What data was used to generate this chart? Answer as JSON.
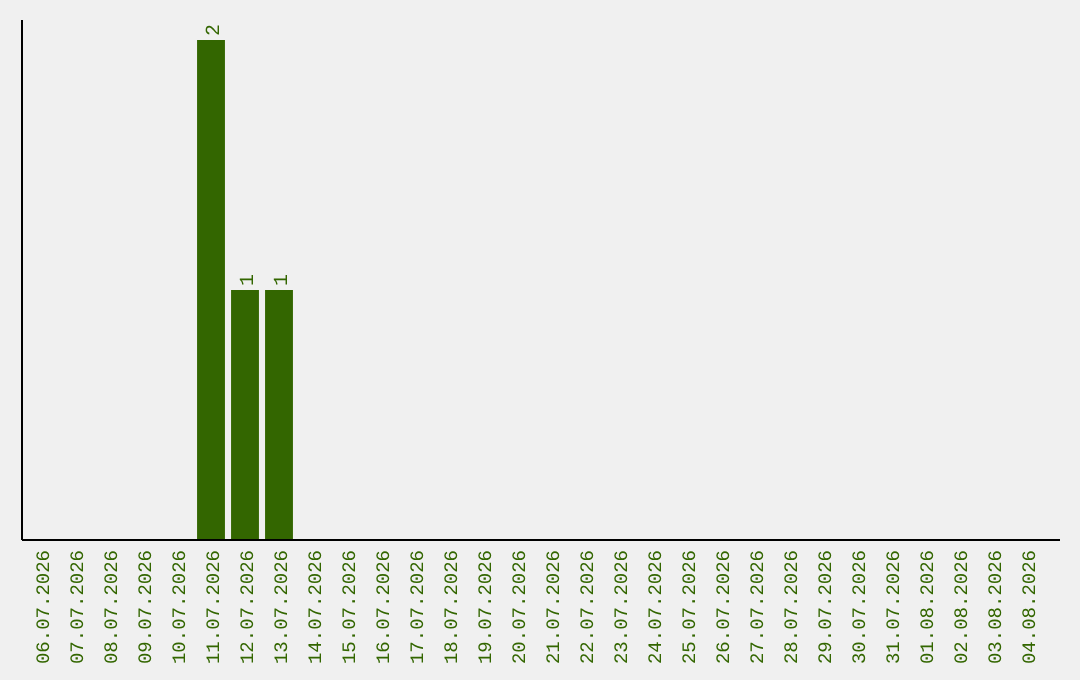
{
  "chart_data": {
    "type": "bar",
    "categories": [
      "06.07.2026",
      "07.07.2026",
      "08.07.2026",
      "09.07.2026",
      "10.07.2026",
      "11.07.2026",
      "12.07.2026",
      "13.07.2026",
      "14.07.2026",
      "15.07.2026",
      "16.07.2026",
      "17.07.2026",
      "18.07.2026",
      "19.07.2026",
      "20.07.2026",
      "21.07.2026",
      "22.07.2026",
      "23.07.2026",
      "24.07.2026",
      "25.07.2026",
      "26.07.2026",
      "27.07.2026",
      "28.07.2026",
      "29.07.2026",
      "30.07.2026",
      "31.07.2026",
      "01.08.2026",
      "02.08.2026",
      "03.08.2026",
      "04.08.2026"
    ],
    "values": [
      0,
      0,
      0,
      0,
      0,
      2,
      1,
      1,
      0,
      0,
      0,
      0,
      0,
      0,
      0,
      0,
      0,
      0,
      0,
      0,
      0,
      0,
      0,
      0,
      0,
      0,
      0,
      0,
      0,
      0
    ],
    "value_labels": [
      null,
      null,
      null,
      null,
      null,
      "2",
      "1",
      "1",
      null,
      null,
      null,
      null,
      null,
      null,
      null,
      null,
      null,
      null,
      null,
      null,
      null,
      null,
      null,
      null,
      null,
      null,
      null,
      null,
      null,
      null
    ],
    "color": "#336600",
    "ylim": [
      0,
      2.08
    ],
    "tick_labels": "x"
  }
}
